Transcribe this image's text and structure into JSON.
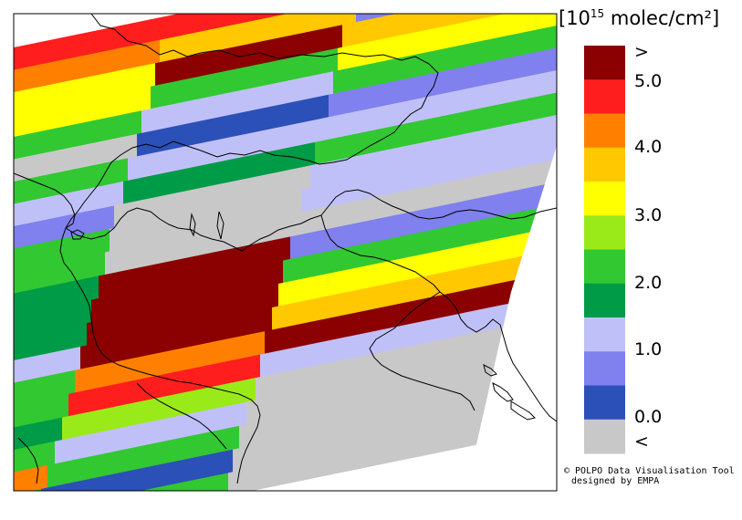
{
  "legend": {
    "title_prefix": "[10",
    "title_exp": "15",
    "title_suffix": " molec/cm²]",
    "labels": [
      ">",
      "5.0",
      "4.0",
      "3.0",
      "2.0",
      "1.0",
      "0.0",
      "<"
    ],
    "colors": [
      "#8b0000",
      "#ff1e1e",
      "#ff8000",
      "#ffc800",
      "#ffff00",
      "#9aea1a",
      "#32c832",
      "#009b46",
      "#c0c0f8",
      "#8080ee",
      "#2b50b8",
      "#c8c8c8"
    ]
  },
  "credit": {
    "line1": "© POLPO Data Visualisation Tool",
    "line2": "designed by EMPA"
  }
}
